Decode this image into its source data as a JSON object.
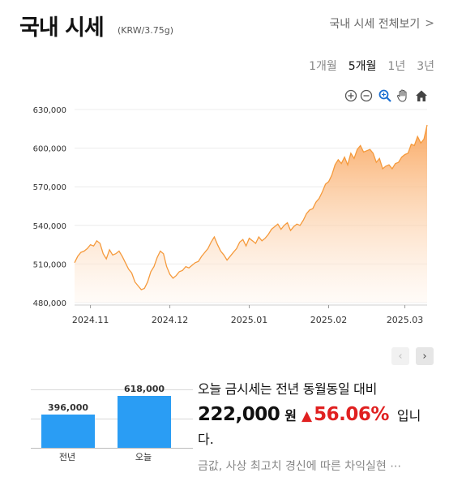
{
  "header": {
    "title": "국내 시세",
    "unit": "(KRW/3.75g)",
    "view_all": "국내 시세 전체보기",
    "view_all_chevron": ">"
  },
  "period_tabs": [
    {
      "label": "1개월",
      "active": false
    },
    {
      "label": "5개월",
      "active": true
    },
    {
      "label": "1년",
      "active": false
    },
    {
      "label": "3년",
      "active": false
    }
  ],
  "toolbar": {
    "icons": [
      "zoom-in-icon",
      "zoom-out-icon",
      "magnify-icon",
      "pan-hand-icon",
      "home-icon"
    ]
  },
  "colors": {
    "line": "#f59a3c",
    "area_top": "#f9a45a",
    "area_bottom": "#fff5ec",
    "bar": "#2a9df4",
    "up": "#e02020"
  },
  "chart_data": [
    {
      "type": "area",
      "title": "",
      "xlabel": "",
      "ylabel": "",
      "ylim": [
        480000,
        630000
      ],
      "yticks": [
        480000,
        510000,
        540000,
        570000,
        600000,
        630000
      ],
      "ytick_labels": [
        "480,000",
        "510,000",
        "540,000",
        "570,000",
        "600,000",
        "630,000"
      ],
      "xtick_labels": [
        "2024.11",
        "2024.12",
        "2025.01",
        "2025.02",
        "2025.03"
      ],
      "xtick_index": [
        5,
        30,
        55,
        80,
        104
      ],
      "grid": true,
      "series": [
        {
          "values": [
            511000,
            516000,
            519000,
            520000,
            522000,
            525000,
            524000,
            528000,
            526000,
            518000,
            514000,
            521000,
            517000,
            518000,
            520000,
            516000,
            511000,
            506000,
            503000,
            496000,
            493000,
            490000,
            491000,
            496000,
            504000,
            508000,
            515000,
            520000,
            518000,
            508000,
            502000,
            499000,
            501000,
            504000,
            505000,
            508000,
            507000,
            509000,
            511000,
            512000,
            516000,
            519000,
            522000,
            527000,
            531000,
            525000,
            520000,
            517000,
            513000,
            516000,
            519000,
            522000,
            527000,
            529000,
            524000,
            530000,
            528000,
            526000,
            531000,
            528000,
            530000,
            533000,
            537000,
            539000,
            541000,
            537000,
            540000,
            542000,
            536000,
            539000,
            541000,
            540000,
            544000,
            549000,
            552000,
            553000,
            558000,
            561000,
            566000,
            572000,
            574000,
            579000,
            587000,
            591000,
            588000,
            593000,
            587000,
            596000,
            592000,
            599000,
            602000,
            597000,
            598000,
            599000,
            596000,
            589000,
            592000,
            584000,
            586000,
            587000,
            584000,
            588000,
            589000,
            593000,
            595000,
            596000,
            603000,
            602000,
            609000,
            604000,
            607000,
            618000
          ]
        }
      ]
    },
    {
      "type": "bar",
      "categories": [
        "전년",
        "오늘"
      ],
      "values": [
        396000,
        618000
      ],
      "data_labels": [
        "396,000",
        "618,000"
      ],
      "ylim": [
        0,
        700000
      ]
    }
  ],
  "nav": {
    "prev_icon": "‹",
    "next_icon": "›"
  },
  "summary": {
    "line1": "오늘 금시세는 전년 동월동일 대비",
    "amount": "222,000",
    "won": "원",
    "arrow": "▲",
    "percent": "56.06%",
    "suffix": "입니",
    "line3": "다."
  },
  "news": {
    "text": "금값, 사상 최고치 경신에 따른 차익실현 ⋯"
  }
}
